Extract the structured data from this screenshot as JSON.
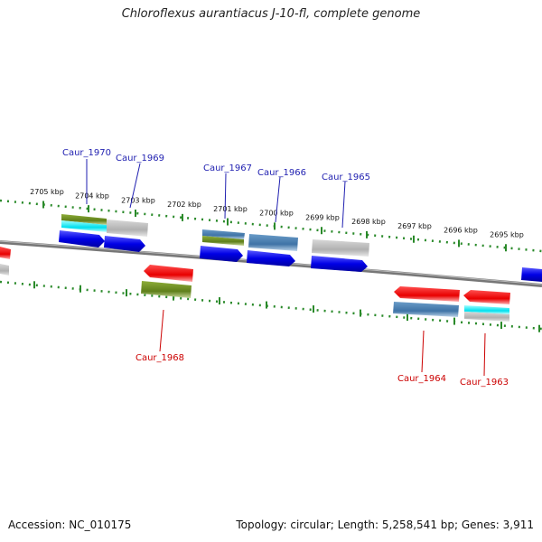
{
  "title": "Chloroflexus aurantiacus J-10-fl, complete genome",
  "footer": {
    "accession": "Accession: NC_010175",
    "summary": "Topology: circular; Length: 5,258,541 bp; Genes: 3,911"
  },
  "colors": {
    "ruler": "#2a8a2a",
    "backbone": "#888888",
    "blue": "#1010e0",
    "red": "#e00000",
    "steelblue": "#4a7fb0",
    "olive": "#6b8e23",
    "cyan": "#00e5ee",
    "gray": "#b4b4b4",
    "label_top": "#1f1fb0",
    "label_bottom": "#cc0000"
  },
  "ruler": {
    "ticks": [
      {
        "label": "2705 kbp"
      },
      {
        "label": "2704 kbp"
      },
      {
        "label": "2703 kbp"
      },
      {
        "label": "2702 kbp"
      },
      {
        "label": "2701 kbp"
      },
      {
        "label": "2700 kbp"
      },
      {
        "label": "2699 kbp"
      },
      {
        "label": "2698 kbp"
      },
      {
        "label": "2697 kbp"
      },
      {
        "label": "2696 kbp"
      },
      {
        "label": "2695 kbp"
      }
    ]
  },
  "gene_labels": {
    "top": [
      "Caur_1970",
      "Caur_1969",
      "Caur_1967",
      "Caur_1966",
      "Caur_1965"
    ],
    "bottom": [
      "Caur_1968",
      "Caur_1964",
      "Caur_1963"
    ]
  }
}
